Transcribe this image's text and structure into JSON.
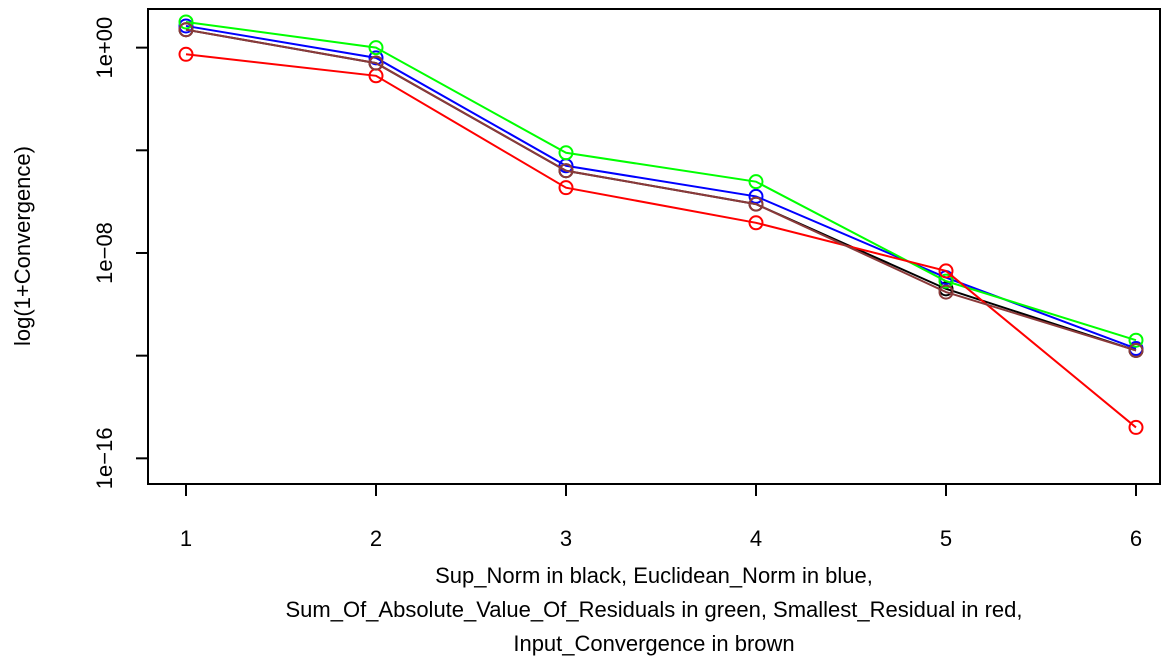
{
  "chart_data": {
    "type": "line",
    "title": "",
    "ylabel": "log(1+Convergence)",
    "xlabel_lines": [
      "Sup_Norm in black, Euclidean_Norm in blue,",
      "Sum_Of_Absolute_Value_Of_Residuals in green, Smallest_Residual in red,",
      "Input_Convergence in brown"
    ],
    "x": [
      1,
      2,
      3,
      4,
      5,
      6
    ],
    "x_ticks": [
      "1",
      "2",
      "3",
      "4",
      "5",
      "6"
    ],
    "y_scale": "log10",
    "y_ticks": [
      "1e+00",
      "1e−08",
      "1e−16"
    ],
    "y_tick_values": [
      1.0,
      1e-08,
      1e-16
    ],
    "ylim": [
      1e-17,
      32.0
    ],
    "grid": false,
    "markers": "open-circle",
    "series": [
      {
        "color": "#000000",
        "values": [
          5.0,
          0.25,
          1.6e-05,
          8e-07,
          4e-10,
          1.6e-12
        ]
      },
      {
        "color": "#0000ff",
        "values": [
          7.0,
          0.4,
          2.5e-05,
          1.6e-06,
          1.1e-09,
          1.9e-12
        ]
      },
      {
        "color": "#00ff00",
        "values": [
          10.0,
          1.0,
          8e-05,
          6e-06,
          8e-10,
          4e-12
        ]
      },
      {
        "color": "#ff0000",
        "values": [
          0.55,
          0.08,
          3.5e-06,
          1.5e-07,
          2e-09,
          1.6e-15
        ]
      },
      {
        "color": "#8b3a3a",
        "values": [
          5.0,
          0.25,
          1.6e-05,
          8e-07,
          3e-10,
          1.6e-12
        ]
      }
    ]
  }
}
